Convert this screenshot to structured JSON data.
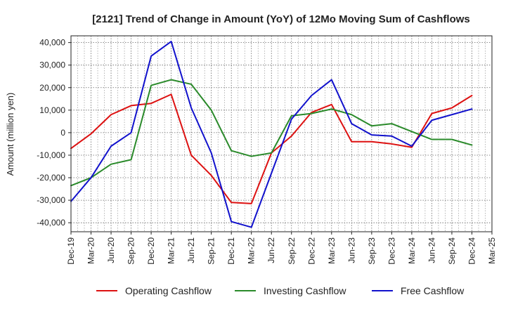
{
  "chart_data": {
    "type": "line",
    "title": "[2121]  Trend of Change in Amount (YoY) of 12Mo Moving Sum of Cashflows",
    "xlabel": "",
    "ylabel": "Amount (million yen)",
    "ylim": [
      -44000,
      43000
    ],
    "yticks": [
      40000,
      30000,
      20000,
      10000,
      0,
      -10000,
      -20000,
      -30000,
      -40000
    ],
    "ytick_labels": [
      "40,000",
      "30,000",
      "20,000",
      "10,000",
      "0",
      "-10,000",
      "-20,000",
      "-30,000",
      "-40,000"
    ],
    "categories": [
      "Dec-19",
      "Mar-20",
      "Jun-20",
      "Sep-20",
      "Dec-20",
      "Mar-21",
      "Jun-21",
      "Sep-21",
      "Dec-21",
      "Mar-22",
      "Jun-22",
      "Sep-22",
      "Dec-22",
      "Mar-23",
      "Jun-23",
      "Sep-23",
      "Dec-23",
      "Mar-24",
      "Jun-24",
      "Sep-24",
      "Dec-24",
      "Mar-25"
    ],
    "grid": true,
    "legend_position": "bottom",
    "series": [
      {
        "name": "Operating Cashflow",
        "color": "#dd1111",
        "values": [
          -7000,
          -500,
          8000,
          12000,
          13000,
          17000,
          -10000,
          -19000,
          -31000,
          -31500,
          -9000,
          -1500,
          9000,
          12500,
          -4000,
          -4000,
          -5000,
          -6500,
          8500,
          11000,
          16500,
          null
        ]
      },
      {
        "name": "Investing Cashflow",
        "color": "#2a8a2a",
        "values": [
          -23500,
          -20000,
          -14000,
          -12000,
          21000,
          23500,
          21500,
          10000,
          -8000,
          -10500,
          -9000,
          7500,
          8500,
          10500,
          8000,
          3000,
          4000,
          500,
          -3000,
          -3000,
          -5500,
          null
        ]
      },
      {
        "name": "Free Cashflow",
        "color": "#1111cc",
        "values": [
          -30500,
          -20000,
          -6000,
          0,
          34000,
          40500,
          11000,
          -9000,
          -39500,
          -42000,
          -18000,
          6000,
          16500,
          23500,
          4000,
          -1000,
          -1500,
          -6000,
          5500,
          8000,
          10500,
          null
        ]
      }
    ]
  }
}
